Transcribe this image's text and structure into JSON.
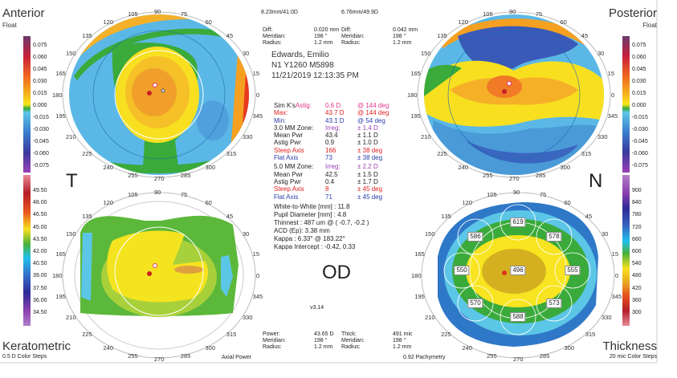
{
  "maps": {
    "anterior": {
      "title": "Anterior",
      "subtitle": "Float"
    },
    "posterior": {
      "title": "Posterior",
      "subtitle": "Float"
    },
    "keratometric": {
      "title": "Keratometric",
      "subtitle": "0.5 D Color Steps",
      "mode": "Axial Power"
    },
    "thickness": {
      "title": "Thickness",
      "subtitle": "20 mic Color Steps",
      "mode": "0.92 Pachymetry"
    }
  },
  "scales": {
    "float": [
      "0.075",
      "0.060",
      "0.045",
      "0.030",
      "0.015",
      "0.000",
      "-0.015",
      "-0.030",
      "-0.045",
      "-0.060",
      "-0.075"
    ],
    "keratometric": [
      "49.50",
      "48.00",
      "46.50",
      "45.00",
      "43.50",
      "42.00",
      "40.50",
      "39.00",
      "37.50",
      "36.00",
      "34.50"
    ],
    "thickness": [
      "900",
      "840",
      "780",
      "720",
      "660",
      "600",
      "540",
      "480",
      "420",
      "360",
      "300"
    ]
  },
  "angle_ticks": [
    "0",
    "15",
    "30",
    "45",
    "60",
    "75",
    "90",
    "105",
    "120",
    "135",
    "150",
    "165",
    "180",
    "195",
    "210",
    "225",
    "240",
    "255",
    "270",
    "285",
    "300",
    "315",
    "330",
    "345"
  ],
  "orientation": {
    "temporal": "T",
    "nasal": "N",
    "eye": "OD",
    "version": "v3.14"
  },
  "top_info": {
    "bfs_front": "8.23mm/41.0D",
    "bfs_back": "6.76mm/49.9D",
    "front": [
      [
        "Diff:",
        "0.020 mm"
      ],
      [
        "Meridian:",
        "198 °"
      ],
      [
        "Radius:",
        "1.2 mm"
      ]
    ],
    "back": [
      [
        "Diff:",
        "0.042 mm"
      ],
      [
        "Meridian:",
        "198 °"
      ],
      [
        "Radius:",
        "1.2 mm"
      ]
    ]
  },
  "patient": {
    "name": "Edwards, Emilio",
    "id": "N1 Y1260 M5898",
    "datetime": "11/21/2019 12:13:35 PM"
  },
  "simk": [
    {
      "label": "Sim K's",
      "label2": "Astig:",
      "value": "0.6 D",
      "axis": "@ 144 deg"
    },
    {
      "label": "Max:",
      "value": "43.7 D",
      "axis": "@ 144 deg"
    },
    {
      "label": "Min:",
      "value": "43.1 D",
      "axis": "@ 54 deg"
    }
  ],
  "zone3": {
    "title": "3.0 MM Zone:",
    "irreg": "Irreg:",
    "irreg_val": "± 1.4 D",
    "rows": [
      [
        "Mean Pwr",
        "43.4",
        "± 1.1 D"
      ],
      [
        "Astig Pwr",
        "0.9",
        "± 1.0 D"
      ],
      [
        "Steep Axis",
        "166",
        "± 38 deg"
      ],
      [
        "Flat Axis",
        "73",
        "± 38 deg"
      ]
    ]
  },
  "zone5": {
    "title": "5.0 MM Zone:",
    "irreg": "Irreg:",
    "irreg_val": "± 2.2 D",
    "rows": [
      [
        "Mean Pwr",
        "42.5",
        "± 1.5 D"
      ],
      [
        "Astig Pwr",
        "0.4",
        "± 1.7 D"
      ],
      [
        "Steep Axis",
        "8",
        "± 45 deg"
      ],
      [
        "Flat Axis",
        "71",
        "± 45 deg"
      ]
    ]
  },
  "measurements": [
    "White-to-White [mm] : 11.8",
    "Pupil Diameter [mm] :  4.8",
    "Thinnest : 487 um @ ( -0.7, -0.2 )",
    "ACD (Ep): 3.38 mm",
    "Kappa : 6.33° @ 183.22°",
    "Kappa Intercept : -0.42, 0.33"
  ],
  "bottom_info": {
    "power": [
      [
        "Power:",
        "43.65 D"
      ],
      [
        "Meridian:",
        "198 °"
      ],
      [
        "Radius:",
        "1.2 mm"
      ]
    ],
    "thick": [
      [
        "Thick:",
        "491 mic"
      ],
      [
        "Meridian:",
        "198 °"
      ],
      [
        "Radius:",
        "1.2 mm"
      ]
    ]
  },
  "pachymetry": {
    "center": "496",
    "n": "619",
    "nw": "586",
    "ne": "578",
    "w": "550",
    "e": "555",
    "sw": "570",
    "se": "573",
    "s": "588"
  }
}
